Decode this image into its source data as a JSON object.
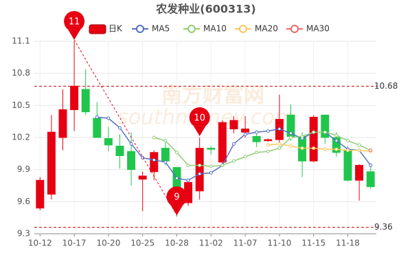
{
  "chart_data": {
    "type": "candlestick",
    "title": "农发种业(600313)",
    "categories": [
      "10-12",
      null,
      null,
      "10-17",
      null,
      null,
      "10-20",
      null,
      null,
      "10-25",
      null,
      null,
      "10-28",
      null,
      null,
      "11-02",
      null,
      null,
      "11-07",
      null,
      null,
      "11-10",
      null,
      null,
      "11-15",
      null,
      null,
      "11-18",
      null,
      null
    ],
    "candles": {
      "name": "日K",
      "up_color": "#e60012",
      "down_color": "#1fc64b",
      "open": [
        9.54,
        9.67,
        10.2,
        10.46,
        10.65,
        10.38,
        10.19,
        10.12,
        10.07,
        9.81,
        9.88,
        10.1,
        9.92,
        9.59,
        9.7,
        10.1,
        9.97,
        10.28,
        10.25,
        10.21,
        10.17,
        10.18,
        10.41,
        10.21,
        9.98,
        10.41,
        10.2,
        10.08,
        9.8,
        9.88
      ],
      "close": [
        9.8,
        10.25,
        10.46,
        10.68,
        10.44,
        10.2,
        10.13,
        10.03,
        9.9,
        9.84,
        10.06,
        9.98,
        9.57,
        9.78,
        10.1,
        10.09,
        10.34,
        10.36,
        10.28,
        10.16,
        10.18,
        10.37,
        10.21,
        9.98,
        10.39,
        10.2,
        10.06,
        9.8,
        9.94,
        9.74
      ],
      "high": [
        9.83,
        10.41,
        10.65,
        11.1,
        10.84,
        10.53,
        10.3,
        10.23,
        10.25,
        9.88,
        10.08,
        10.17,
        9.92,
        9.81,
        10.2,
        10.12,
        10.36,
        10.4,
        10.4,
        10.26,
        10.19,
        10.6,
        10.51,
        10.25,
        10.41,
        10.41,
        10.25,
        10.12,
        9.95,
        9.94
      ],
      "low": [
        9.52,
        9.62,
        10.08,
        10.26,
        10.41,
        10.2,
        10.07,
        9.91,
        9.75,
        9.51,
        9.8,
        9.94,
        9.46,
        9.56,
        9.62,
        10.04,
        9.94,
        10.24,
        10.2,
        10.11,
        10.16,
        10.14,
        10.17,
        9.83,
        9.97,
        10.14,
        10.02,
        9.79,
        9.61,
        9.72
      ]
    },
    "series": [
      {
        "name": "MA5",
        "color": "#5470c6",
        "values": [
          null,
          null,
          null,
          null,
          null,
          10.39,
          10.38,
          10.29,
          10.14,
          10.01,
          9.99,
          9.97,
          9.82,
          9.8,
          9.86,
          9.87,
          9.94,
          10.14,
          10.23,
          10.25,
          10.26,
          10.28,
          10.24,
          10.19,
          10.25,
          10.25,
          10.17,
          10.09,
          10.08,
          9.94
        ]
      },
      {
        "name": "MA10",
        "color": "#91cc75",
        "values": [
          null,
          null,
          null,
          null,
          null,
          null,
          null,
          null,
          null,
          null,
          10.2,
          10.17,
          10.06,
          9.94,
          9.94,
          9.93,
          9.94,
          9.98,
          10.02,
          10.06,
          10.07,
          10.1,
          10.2,
          10.21,
          10.25,
          10.25,
          10.22,
          10.17,
          10.13,
          10.08
        ]
      },
      {
        "name": "MA20",
        "color": "#fac858",
        "values": [
          null,
          null,
          null,
          null,
          null,
          null,
          null,
          null,
          null,
          null,
          null,
          null,
          null,
          null,
          null,
          null,
          null,
          null,
          null,
          null,
          10.13,
          10.14,
          10.12,
          10.1,
          10.1,
          10.09,
          10.09,
          10.08,
          10.08,
          10.07
        ]
      },
      {
        "name": "MA30",
        "color": "#ee6666",
        "values": [
          null,
          null,
          null,
          null,
          null,
          null,
          null,
          null,
          null,
          null,
          null,
          null,
          null,
          null,
          null,
          null,
          null,
          null,
          null,
          null,
          null,
          null,
          null,
          null,
          null,
          null,
          null,
          null,
          null,
          10.08
        ]
      }
    ],
    "ylim": [
      9.3,
      11.1
    ],
    "yticks": [
      9.3,
      9.6,
      9.9,
      10.2,
      10.5,
      10.8,
      11.1
    ],
    "grid": true,
    "reference_lines": [
      10.68,
      9.36
    ],
    "reference_color": "#cc0000",
    "annotations": [
      {
        "label": "11",
        "value": 11.1
      },
      {
        "label": "10",
        "value": 10.2
      },
      {
        "label": "9",
        "value": 9.46
      }
    ],
    "annotation_color": "#e60012",
    "watermark": [
      "南方财富网",
      "southmoney.com"
    ]
  }
}
